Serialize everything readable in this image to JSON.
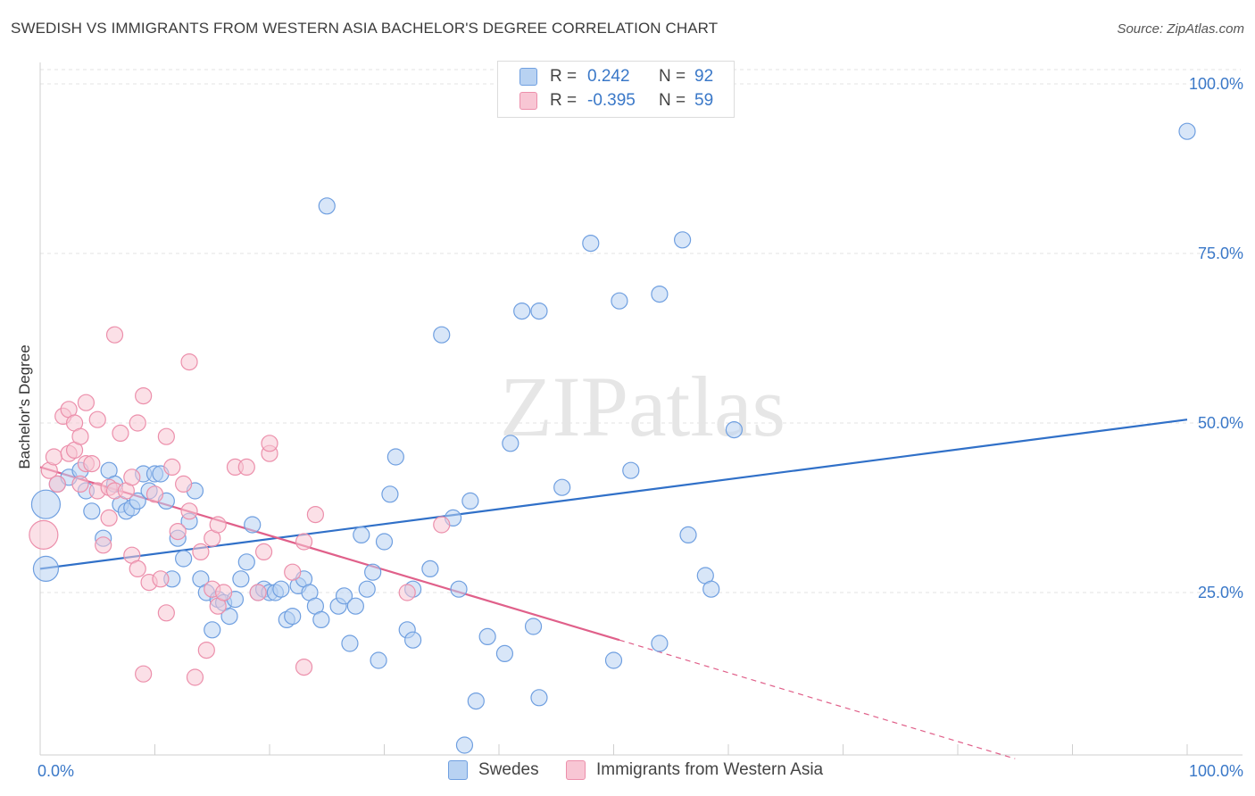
{
  "title": "SWEDISH VS IMMIGRANTS FROM WESTERN ASIA BACHELOR'S DEGREE CORRELATION CHART",
  "source": "Source: ZipAtlas.com",
  "watermark": "ZIPatlas",
  "legend": {
    "r_label": "R =",
    "n_label": "N =",
    "rows": [
      {
        "r": "0.242",
        "n": "92",
        "color": "#b8d2f2",
        "border": "#6f9fe0"
      },
      {
        "r": "-0.395",
        "n": "59",
        "color": "#f8c6d4",
        "border": "#ec8fab"
      }
    ]
  },
  "bottom_legend": [
    {
      "label": "Swedes",
      "color": "#b8d2f2",
      "border": "#6f9fe0"
    },
    {
      "label": "Immigrants from Western Asia",
      "color": "#f8c6d4",
      "border": "#ec8fab"
    }
  ],
  "chart_data": {
    "type": "scatter",
    "title": "SWEDISH VS IMMIGRANTS FROM WESTERN ASIA BACHELOR'S DEGREE CORRELATION CHART",
    "xlabel": "",
    "ylabel": "Bachelor's Degree",
    "xlim": [
      0,
      100
    ],
    "ylim": [
      0,
      100
    ],
    "x_tick_labels": [
      "0.0%",
      "100.0%"
    ],
    "y_tick_labels": [
      "25.0%",
      "50.0%",
      "75.0%",
      "100.0%"
    ],
    "y_ticks": [
      25,
      50,
      75,
      100
    ],
    "grid": true,
    "legend_position": "top-center",
    "series": [
      {
        "name": "Swedes",
        "color": "#6f9fe0",
        "fill": "#b8d2f2",
        "trend": {
          "x": [
            0,
            100
          ],
          "y": [
            28.5,
            50.5
          ],
          "dashed_after": null,
          "color": "#3070c8"
        },
        "points": [
          [
            0.5,
            38
          ],
          [
            0.5,
            28.5
          ],
          [
            1.5,
            41
          ],
          [
            2.5,
            42
          ],
          [
            3.5,
            43
          ],
          [
            4,
            40
          ],
          [
            4.5,
            37
          ],
          [
            5.5,
            33
          ],
          [
            6,
            43
          ],
          [
            6.5,
            41
          ],
          [
            7,
            38
          ],
          [
            7.5,
            37
          ],
          [
            8,
            37.5
          ],
          [
            8.5,
            38.5
          ],
          [
            9,
            42.5
          ],
          [
            9.5,
            40
          ],
          [
            10,
            42.5
          ],
          [
            10.5,
            42.5
          ],
          [
            11,
            38.5
          ],
          [
            11.5,
            27
          ],
          [
            12,
            33
          ],
          [
            12.5,
            30
          ],
          [
            13,
            35.5
          ],
          [
            13.5,
            40
          ],
          [
            14,
            27
          ],
          [
            14.5,
            25
          ],
          [
            15,
            19.5
          ],
          [
            15.5,
            24
          ],
          [
            16,
            23.5
          ],
          [
            16.5,
            21.5
          ],
          [
            17,
            24
          ],
          [
            17.5,
            27
          ],
          [
            18,
            29.5
          ],
          [
            18.5,
            35
          ],
          [
            19,
            25
          ],
          [
            19.5,
            25.5
          ],
          [
            20,
            25
          ],
          [
            20.5,
            25
          ],
          [
            21,
            25.5
          ],
          [
            21.5,
            21
          ],
          [
            22,
            21.5
          ],
          [
            22.5,
            26
          ],
          [
            23,
            27
          ],
          [
            23.5,
            25
          ],
          [
            24,
            23
          ],
          [
            24.5,
            21
          ],
          [
            25,
            82
          ],
          [
            26,
            23
          ],
          [
            26.5,
            24.5
          ],
          [
            27,
            17.5
          ],
          [
            27.5,
            23
          ],
          [
            28,
            33.5
          ],
          [
            28.5,
            25.5
          ],
          [
            29,
            28
          ],
          [
            29.5,
            15
          ],
          [
            30,
            32.5
          ],
          [
            30.5,
            39.5
          ],
          [
            31,
            45
          ],
          [
            32,
            19.5
          ],
          [
            32.5,
            18
          ],
          [
            32.5,
            25.5
          ],
          [
            34,
            28.5
          ],
          [
            35,
            63
          ],
          [
            36,
            36
          ],
          [
            36.5,
            25.5
          ],
          [
            37,
            2.5
          ],
          [
            37.5,
            38.5
          ],
          [
            38,
            9
          ],
          [
            39,
            18.5
          ],
          [
            40.5,
            16
          ],
          [
            41,
            47
          ],
          [
            42,
            66.5
          ],
          [
            43,
            20
          ],
          [
            43.5,
            9.5
          ],
          [
            43.5,
            66.5
          ],
          [
            45.5,
            40.5
          ],
          [
            48,
            76.5
          ],
          [
            50,
            15
          ],
          [
            50.5,
            68
          ],
          [
            51.5,
            43
          ],
          [
            54,
            17.5
          ],
          [
            54,
            69
          ],
          [
            56,
            77
          ],
          [
            56.5,
            33.5
          ],
          [
            58,
            27.5
          ],
          [
            58.5,
            25.5
          ],
          [
            60.5,
            49
          ],
          [
            100,
            93
          ]
        ],
        "sizes": {
          "0": 16,
          "1": 14
        }
      },
      {
        "name": "Immigrants from Western Asia",
        "color": "#ec8fab",
        "fill": "#f8c6d4",
        "trend": {
          "x": [
            0,
            50.5
          ],
          "y": [
            43.5,
            18
          ],
          "dashed_x": [
            50.5,
            85
          ],
          "dashed_y": [
            18,
            0.5
          ],
          "color": "#e0608a"
        },
        "points": [
          [
            0.3,
            33.5
          ],
          [
            0.8,
            43
          ],
          [
            1.2,
            45
          ],
          [
            1.5,
            41
          ],
          [
            2,
            51
          ],
          [
            2.5,
            45.5
          ],
          [
            2.5,
            52
          ],
          [
            3,
            46
          ],
          [
            3,
            50
          ],
          [
            3.5,
            48
          ],
          [
            3.5,
            41
          ],
          [
            4,
            53
          ],
          [
            4,
            44
          ],
          [
            4.5,
            44
          ],
          [
            5,
            50.5
          ],
          [
            5,
            40
          ],
          [
            5.5,
            32
          ],
          [
            6,
            40.5
          ],
          [
            6,
            36
          ],
          [
            6.5,
            63
          ],
          [
            6.5,
            40
          ],
          [
            7,
            48.5
          ],
          [
            7.5,
            40
          ],
          [
            8,
            42
          ],
          [
            8,
            30.5
          ],
          [
            8.5,
            50
          ],
          [
            8.5,
            28.5
          ],
          [
            9,
            54
          ],
          [
            9,
            13
          ],
          [
            9.5,
            26.5
          ],
          [
            10,
            39.5
          ],
          [
            10.5,
            27
          ],
          [
            11,
            22
          ],
          [
            11,
            48
          ],
          [
            11.5,
            43.5
          ],
          [
            12,
            34
          ],
          [
            12.5,
            41
          ],
          [
            13,
            37
          ],
          [
            13,
            59
          ],
          [
            13.5,
            12.5
          ],
          [
            14,
            31
          ],
          [
            14.5,
            16.5
          ],
          [
            15,
            33
          ],
          [
            15,
            25.5
          ],
          [
            15.5,
            23
          ],
          [
            15.5,
            35
          ],
          [
            16,
            25
          ],
          [
            17,
            43.5
          ],
          [
            18,
            43.5
          ],
          [
            19,
            25
          ],
          [
            19.5,
            31
          ],
          [
            20,
            45.5
          ],
          [
            20,
            47
          ],
          [
            22,
            28
          ],
          [
            23,
            32.5
          ],
          [
            23,
            14
          ],
          [
            24,
            36.5
          ],
          [
            32,
            25
          ],
          [
            35,
            35
          ]
        ],
        "sizes": {
          "0": 16
        }
      }
    ]
  }
}
